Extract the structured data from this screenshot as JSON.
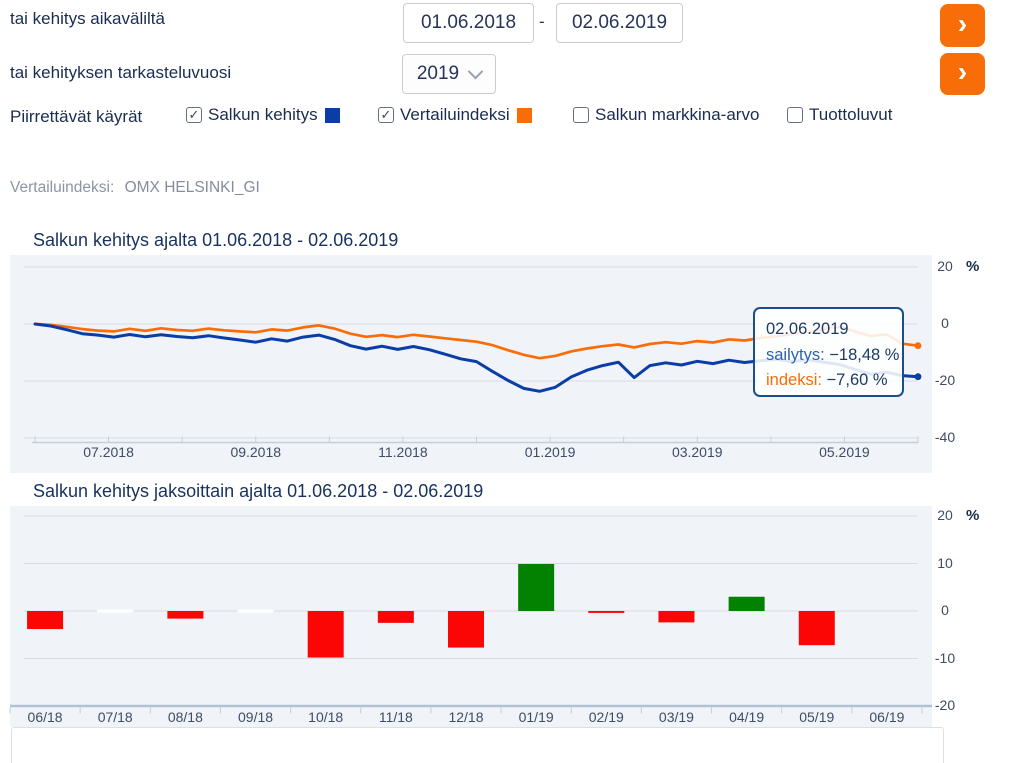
{
  "form": {
    "date_range_label": "tai kehitys aikaväliltä",
    "date_from": "01.06.2018",
    "date_separator": "-",
    "date_to": "02.06.2019",
    "year_label": "tai kehityksen tarkasteluvuosi",
    "year_value": "2019",
    "curves_label": "Piirrettävät käyrät",
    "checkboxes": [
      {
        "label": "Salkun kehitys",
        "checked": true,
        "glyph": "✓",
        "swatch_color": "#0a3da6"
      },
      {
        "label": "Vertailuindeksi",
        "checked": true,
        "glyph": "✓",
        "swatch_color": "#f96d09"
      },
      {
        "label": "Salkun markkina-arvo",
        "checked": false,
        "glyph": ""
      },
      {
        "label": "Tuottoluvut",
        "checked": false,
        "glyph": ""
      }
    ]
  },
  "icons": {
    "chevron_right": "›"
  },
  "benchmark": {
    "label": "Vertailuindeksi:",
    "value": "OMX HELSINKI_GI"
  },
  "tooltip": {
    "date": "02.06.2019",
    "series1_label": "sailytys:",
    "series1_value": "−18,48 %",
    "series2_label": "indeksi:",
    "series2_value": "−7,60 %"
  },
  "colors": {
    "accent_orange": "#f96d09",
    "line_blue": "#0a3da6",
    "line_orange": "#f96d09",
    "bar_red": "#fb0505",
    "bar_green": "#028200",
    "panel_bg": "#f0f3f8"
  },
  "chart_data": [
    {
      "type": "line",
      "title": "Salkun kehitys ajalta 01.06.2018 - 02.06.2019",
      "y_unit": "%",
      "y_ticks": [
        20,
        0,
        -20,
        -40
      ],
      "ylim": [
        -40,
        20
      ],
      "grid": true,
      "x_range": [
        "01.06.2018",
        "02.06.2019"
      ],
      "x_range_months": 12,
      "x_ticks": [
        {
          "label": "07.2018",
          "month": 1
        },
        {
          "label": "09.2018",
          "month": 3
        },
        {
          "label": "11.2018",
          "month": 5
        },
        {
          "label": "01.2019",
          "month": 7
        },
        {
          "label": "03.2019",
          "month": 9
        },
        {
          "label": "05.2019",
          "month": 11
        }
      ],
      "series": [
        {
          "name": "sailytys",
          "color": "#0a3da6",
          "end_value": -18.48,
          "values": [
            0,
            -0.7,
            -2.0,
            -3.4,
            -3.9,
            -4.6,
            -3.7,
            -4.5,
            -3.8,
            -4.4,
            -4.8,
            -4.1,
            -4.9,
            -5.6,
            -6.4,
            -5.2,
            -6.0,
            -4.6,
            -3.9,
            -5.4,
            -7.6,
            -8.8,
            -7.8,
            -8.9,
            -7.9,
            -9.0,
            -10.6,
            -12.2,
            -13.2,
            -16.6,
            -19.8,
            -22.6,
            -23.6,
            -22.2,
            -18.6,
            -16.2,
            -14.6,
            -13.4,
            -18.8,
            -14.6,
            -13.6,
            -14.4,
            -13.1,
            -13.9,
            -12.7,
            -13.5,
            -12.9,
            -12.4,
            -13.2,
            -12.5,
            -13.4,
            -14.2,
            -15.9,
            -17.6,
            -16.9,
            -18.1,
            -18.48
          ]
        },
        {
          "name": "indeksi",
          "color": "#f96d09",
          "end_value": -7.6,
          "values": [
            0,
            -0.3,
            -1.0,
            -1.8,
            -2.3,
            -2.6,
            -1.7,
            -2.4,
            -1.5,
            -2.1,
            -2.4,
            -1.6,
            -2.2,
            -2.6,
            -2.9,
            -1.9,
            -2.3,
            -1.2,
            -0.5,
            -1.6,
            -3.4,
            -4.5,
            -3.9,
            -4.6,
            -3.8,
            -4.4,
            -5.0,
            -5.6,
            -6.2,
            -7.4,
            -9.2,
            -10.8,
            -12.0,
            -11.2,
            -9.6,
            -8.6,
            -7.8,
            -7.2,
            -8.2,
            -7.0,
            -6.4,
            -6.9,
            -6.0,
            -6.5,
            -5.4,
            -5.8,
            -4.9,
            -4.3,
            -3.6,
            -2.8,
            -1.9,
            -0.9,
            -2.6,
            -4.2,
            -3.6,
            -6.9,
            -7.6
          ]
        }
      ]
    },
    {
      "type": "bar",
      "title": "Salkun kehitys jaksoittain ajalta 01.06.2018 - 02.06.2019",
      "y_unit": "%",
      "y_ticks": [
        20,
        10,
        0,
        -10,
        -20
      ],
      "ylim": [
        -20,
        20
      ],
      "categories": [
        "06/18",
        "07/18",
        "08/18",
        "09/18",
        "10/18",
        "11/18",
        "12/18",
        "01/19",
        "02/19",
        "03/19",
        "04/19",
        "05/19",
        "06/19"
      ],
      "values": [
        -3.8,
        0,
        -1.6,
        0,
        -9.8,
        -2.5,
        -7.7,
        9.9,
        -0.4,
        -2.4,
        3.0,
        -7.2,
        null
      ],
      "positive_color": "#028200",
      "negative_color": "#fb0505"
    }
  ]
}
